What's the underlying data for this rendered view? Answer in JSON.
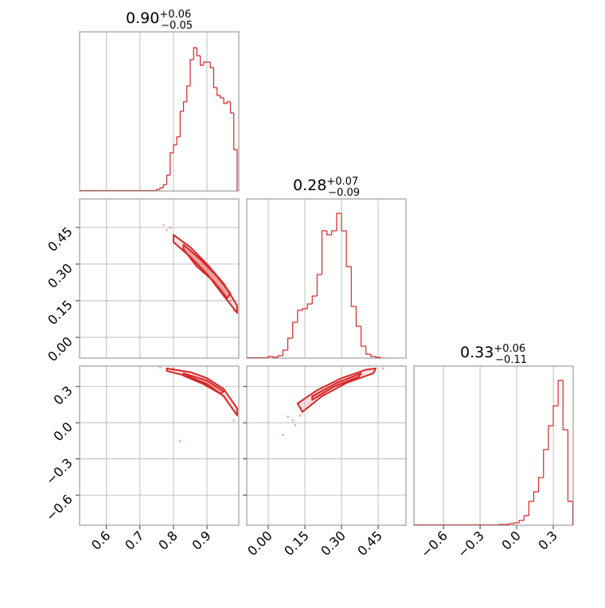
{
  "chart_data": [
    {
      "type": "histogram",
      "title": "0.90",
      "title_plus": "+0.06",
      "title_minus": "−0.05",
      "color": "#d62728",
      "bins": [
        0.75,
        0.76,
        0.77,
        0.78,
        0.79,
        0.8,
        0.81,
        0.82,
        0.83,
        0.84,
        0.85,
        0.86,
        0.87,
        0.88,
        0.89,
        0.9,
        0.91,
        0.92,
        0.93,
        0.94,
        0.95,
        0.96,
        0.97,
        0.98,
        0.99,
        1.0
      ],
      "values": [
        2,
        4,
        8,
        20,
        48,
        58,
        68,
        100,
        112,
        132,
        165,
        180,
        170,
        158,
        162,
        162,
        155,
        130,
        120,
        117,
        110,
        112,
        98,
        52,
        0
      ],
      "xlim": [
        0.52,
        0.995
      ],
      "xticks": [
        0.6,
        0.7,
        0.8,
        0.9
      ],
      "ylim": [
        0,
        200
      ],
      "grid": true
    },
    {
      "type": "contour",
      "color": "#d62728",
      "xlim": [
        0.52,
        0.995
      ],
      "ylim": [
        -0.085,
        0.567
      ],
      "xticks": [
        0.6,
        0.7,
        0.8,
        0.9
      ],
      "yticks": [
        0.45,
        {
          "value": 0.3,
          "label": "0.30"
        },
        0.15,
        {
          "value": 0,
          "label": "0.00"
        }
      ],
      "grid": true,
      "contours": [
        {
          "x": [
            0.8,
            0.85,
            0.9,
            0.95,
            0.99,
            0.99,
            0.95,
            0.9,
            0.85,
            0.8
          ],
          "y": [
            0.42,
            0.37,
            0.3,
            0.22,
            0.13,
            0.1,
            0.17,
            0.26,
            0.33,
            0.39
          ]
        },
        {
          "x": [
            0.83,
            0.88,
            0.93,
            0.97,
            0.96,
            0.92,
            0.87,
            0.83
          ],
          "y": [
            0.38,
            0.32,
            0.25,
            0.18,
            0.16,
            0.23,
            0.29,
            0.36
          ]
        }
      ],
      "points": {
        "x": [
          0.77,
          0.78,
          0.79,
          0.98,
          0.97
        ],
        "y": [
          0.46,
          0.44,
          0.45,
          0.11,
          0.15
        ]
      }
    },
    {
      "type": "histogram",
      "title": "0.28",
      "title_plus": "+0.07",
      "title_minus": "−0.09",
      "color": "#d62728",
      "bins": [
        0.0,
        0.02,
        0.04,
        0.06,
        0.08,
        0.1,
        0.12,
        0.14,
        0.16,
        0.18,
        0.2,
        0.22,
        0.24,
        0.26,
        0.28,
        0.3,
        0.32,
        0.34,
        0.36,
        0.38,
        0.4,
        0.42,
        0.44,
        0.46,
        0.48
      ],
      "values": [
        2,
        1,
        3,
        10,
        25,
        45,
        60,
        62,
        68,
        78,
        105,
        160,
        155,
        160,
        182,
        160,
        115,
        65,
        40,
        15,
        5,
        2,
        1,
        0
      ],
      "xlim": [
        -0.088,
        0.564
      ],
      "xticks": [
        0,
        0.15,
        0.3,
        0.45
      ],
      "ylim": [
        0,
        200
      ],
      "grid": true
    },
    {
      "type": "contour",
      "color": "#d62728",
      "xlim": [
        0.52,
        0.995
      ],
      "ylim": [
        -0.85,
        0.47
      ],
      "xticks": [
        0.6,
        0.7,
        0.8,
        0.9
      ],
      "yticks": [
        0.3,
        {
          "value": 0,
          "label": "0.0"
        },
        {
          "value": -0.3,
          "label": "−0.3"
        },
        {
          "value": -0.6,
          "label": "−0.6"
        }
      ],
      "grid": true,
      "contours": [
        {
          "x": [
            0.78,
            0.85,
            0.9,
            0.95,
            0.99,
            0.99,
            0.95,
            0.9,
            0.85,
            0.78
          ],
          "y": [
            0.45,
            0.42,
            0.37,
            0.28,
            0.12,
            0.06,
            0.22,
            0.32,
            0.38,
            0.43
          ]
        },
        {
          "x": [
            0.83,
            0.9,
            0.95,
            0.94,
            0.89,
            0.83
          ],
          "y": [
            0.41,
            0.35,
            0.26,
            0.24,
            0.32,
            0.39
          ]
        }
      ],
      "points": {
        "x": [
          0.82,
          0.76,
          0.8,
          0.98
        ],
        "y": [
          -0.15,
          0.46,
          0.45,
          0.02
        ]
      }
    },
    {
      "type": "contour",
      "color": "#d62728",
      "xlim": [
        -0.088,
        0.564
      ],
      "ylim": [
        -0.85,
        0.47
      ],
      "xticks": [
        {
          "value": 0,
          "label": "0.00"
        },
        0.15,
        {
          "value": 0.3,
          "label": "0.30"
        },
        0.45
      ],
      "yticks": [
        0.3,
        0,
        -0.3,
        -0.6
      ],
      "grid": true,
      "contours": [
        {
          "x": [
            0.12,
            0.2,
            0.3,
            0.4,
            0.44,
            0.43,
            0.32,
            0.22,
            0.14
          ],
          "y": [
            0.16,
            0.27,
            0.37,
            0.44,
            0.45,
            0.41,
            0.33,
            0.22,
            0.09
          ]
        },
        {
          "x": [
            0.18,
            0.28,
            0.38,
            0.37,
            0.27,
            0.18
          ],
          "y": [
            0.22,
            0.33,
            0.41,
            0.38,
            0.3,
            0.19
          ]
        }
      ],
      "points": {
        "x": [
          0.08,
          0.06,
          0.1,
          0.47,
          0.11,
          0.13
        ],
        "y": [
          0.05,
          -0.1,
          0.02,
          0.45,
          -0.02,
          0.06
        ]
      }
    },
    {
      "type": "histogram",
      "title": "0.33",
      "title_plus": "+0.06",
      "title_minus": "−0.11",
      "color": "#d62728",
      "bins": [
        -0.14,
        -0.1,
        -0.06,
        -0.02,
        0.02,
        0.06,
        0.1,
        0.14,
        0.18,
        0.22,
        0.26,
        0.3,
        0.34,
        0.38,
        0.42,
        0.46
      ],
      "values": [
        1,
        1,
        2,
        3,
        6,
        12,
        30,
        42,
        60,
        95,
        125,
        150,
        182,
        120,
        30
      ],
      "xlim": [
        -0.842,
        0.463
      ],
      "xticks": [
        {
          "value": -0.6,
          "label": "−0.6"
        },
        {
          "value": -0.3,
          "label": "−0.3"
        },
        {
          "value": 0,
          "label": "0.0"
        },
        0.3
      ],
      "ylim": [
        0,
        200
      ],
      "grid": true
    }
  ]
}
